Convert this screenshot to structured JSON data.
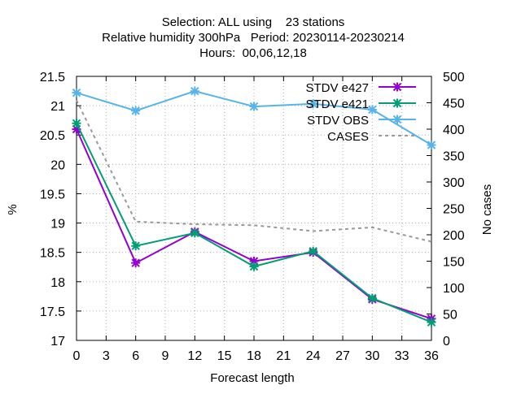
{
  "chart_data": {
    "type": "line",
    "title_lines": [
      "Selection: ALL using    23 stations",
      "Relative humidity 300hPa   Period: 20230114-20230214",
      "Hours:  00,06,12,18"
    ],
    "xlabel": "Forecast length",
    "ylabel": "%",
    "y2label": "No cases",
    "xlim": [
      0,
      36
    ],
    "ylim": [
      17,
      21.5
    ],
    "y2lim": [
      0,
      500
    ],
    "xticks": [
      0,
      3,
      6,
      9,
      12,
      15,
      18,
      21,
      24,
      27,
      30,
      33,
      36
    ],
    "yticks": [
      17,
      17.5,
      18,
      18.5,
      19,
      19.5,
      20,
      20.5,
      21,
      21.5
    ],
    "y2ticks": [
      0,
      50,
      100,
      150,
      200,
      250,
      300,
      350,
      400,
      450,
      500
    ],
    "grid": true,
    "legend_position": "top-right",
    "x": [
      0,
      6,
      12,
      18,
      24,
      30,
      36
    ],
    "series": [
      {
        "name": "STDV e427",
        "axis": "y",
        "color": "#9400d3",
        "marker": "x-star",
        "values": [
          20.6,
          18.32,
          18.85,
          18.35,
          18.5,
          17.7,
          17.37
        ]
      },
      {
        "name": "STDV e421",
        "axis": "y",
        "color": "#009e73",
        "marker": "x-star",
        "values": [
          20.7,
          18.61,
          18.83,
          18.26,
          18.52,
          17.72,
          17.31
        ]
      },
      {
        "name": "STDV OBS",
        "axis": "y2",
        "color": "#56b4e9",
        "marker": "x-star",
        "values": [
          469,
          435,
          472,
          443,
          448,
          437,
          370
        ]
      },
      {
        "name": "CASES",
        "axis": "y2",
        "color": "#999999",
        "marker": "none",
        "dashed": true,
        "values": [
          455,
          225,
          220,
          218,
          207,
          214,
          187
        ]
      }
    ]
  }
}
